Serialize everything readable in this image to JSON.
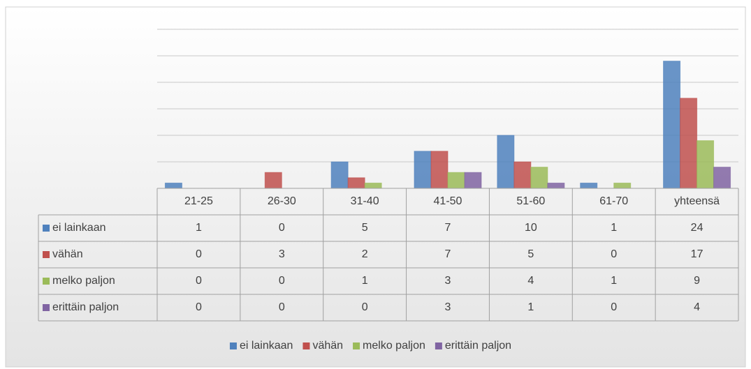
{
  "chart_data": {
    "type": "bar",
    "categories": [
      "21-25",
      "26-30",
      "31-40",
      "41-50",
      "51-60",
      "61-70",
      "yhteensä"
    ],
    "series": [
      {
        "name": "ei lainkaan",
        "color": "#4f81bd",
        "values": [
          1,
          0,
          5,
          7,
          10,
          1,
          24
        ]
      },
      {
        "name": "vähän",
        "color": "#c0504d",
        "values": [
          0,
          3,
          2,
          7,
          5,
          0,
          17
        ]
      },
      {
        "name": "melko paljon",
        "color": "#9bbb59",
        "values": [
          0,
          0,
          1,
          3,
          4,
          1,
          9
        ]
      },
      {
        "name": "erittäin paljon",
        "color": "#8064a2",
        "values": [
          0,
          0,
          0,
          3,
          1,
          0,
          4
        ]
      }
    ],
    "ylim": [
      0,
      30
    ],
    "yticks": [
      0,
      5,
      10,
      15,
      20,
      25,
      30
    ],
    "grid": true,
    "legend": "bottom"
  }
}
